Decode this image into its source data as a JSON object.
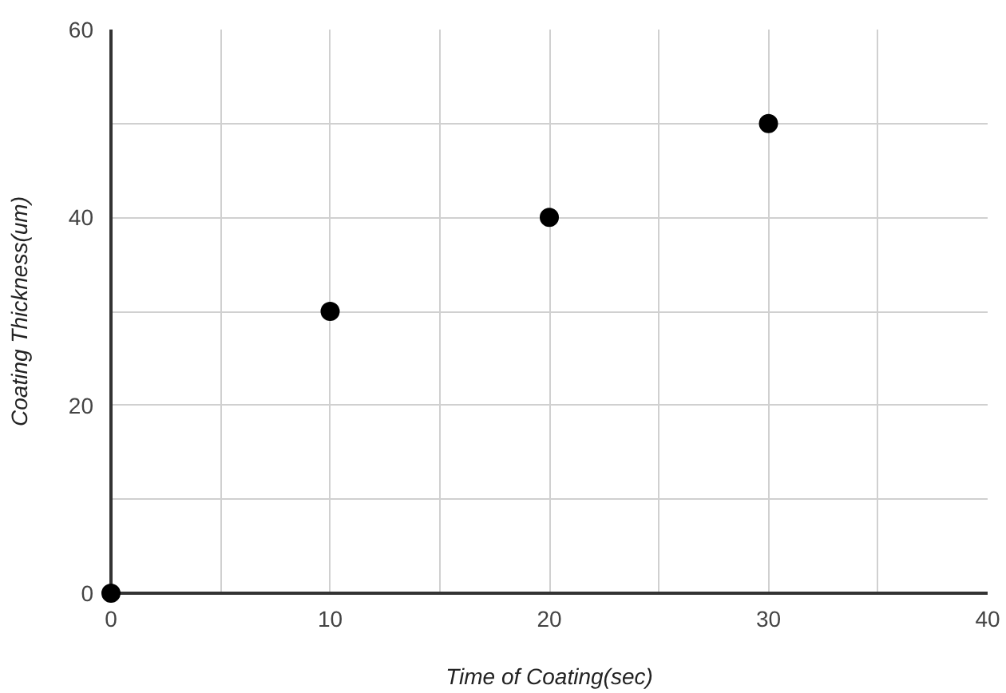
{
  "chart_data": {
    "type": "scatter",
    "xlabel": "Time of Coating(sec)",
    "ylabel": "Coating Thickness(um)",
    "x": [
      0,
      10,
      20,
      30
    ],
    "series": [
      {
        "color": "#000000",
        "values": [
          0,
          30,
          40,
          50
        ]
      }
    ],
    "xlim": [
      0,
      40
    ],
    "ylim": [
      0,
      60
    ],
    "xticks": [
      0,
      {
        "value": 5,
        "label": null
      },
      10,
      {
        "value": 15,
        "label": null
      },
      20,
      {
        "value": 25,
        "label": null
      },
      30,
      {
        "value": 35,
        "label": null
      },
      40
    ],
    "yticks": [
      0,
      {
        "value": 10,
        "label": null
      },
      20,
      {
        "value": 30,
        "label": null
      },
      40,
      {
        "value": 50,
        "label": null
      },
      60
    ],
    "grid": true,
    "marker": "circle"
  }
}
